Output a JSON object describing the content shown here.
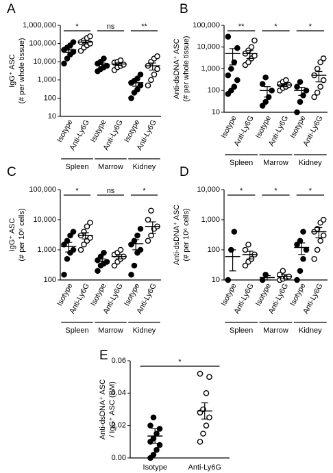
{
  "chart_data": [
    {
      "type": "dot",
      "panel": "A",
      "ylabel": [
        "IgG⁺ ASC",
        "(# per whole tissue)"
      ],
      "log": true,
      "color": "#000000",
      "ylim": [
        10,
        1000000
      ],
      "yticks": [
        10,
        100,
        {
          "value": 1000,
          "label": "1,000"
        },
        {
          "value": 10000,
          "label": "10,000"
        },
        {
          "value": 100000,
          "label": "100,000"
        },
        {
          "value": 1000000,
          "label": "1,000,000"
        }
      ],
      "categories": [
        "Isotype",
        "Anti-Ly6G",
        "Isotype",
        "Anti-Ly6G",
        "Isotype",
        "Anti-Ly6G"
      ],
      "open": [
        false,
        true,
        false,
        true,
        false,
        true
      ],
      "groups": [
        "Spleen",
        "Marrow",
        "Kidney"
      ],
      "significance": [
        "*",
        "ns",
        "**"
      ],
      "points": [
        [
          8000,
          15000,
          25000,
          35000,
          45000,
          60000,
          80000,
          120000
        ],
        [
          40000,
          60000,
          80000,
          100000,
          120000,
          150000,
          200000,
          250000
        ],
        [
          3000,
          4000,
          5000,
          6000,
          8000,
          10000,
          15000
        ],
        [
          3500,
          5000,
          6000,
          7000,
          9000,
          10000,
          12000
        ],
        [
          100,
          200,
          300,
          500,
          700,
          900,
          1200,
          2000
        ],
        [
          500,
          1000,
          2000,
          4000,
          6000,
          10000,
          15000,
          20000
        ]
      ],
      "means": [
        45000,
        120000,
        7000,
        7500,
        700,
        6000
      ],
      "errors": [
        12000,
        25000,
        1500,
        1200,
        250,
        2500
      ]
    },
    {
      "type": "dot",
      "panel": "B",
      "ylabel": [
        "Anti-dsDNA⁺ ASC",
        "(# per whole tissue)"
      ],
      "log": true,
      "color": "#000000",
      "ylim": [
        10,
        100000
      ],
      "yticks": [
        10,
        100,
        {
          "value": 1000,
          "label": "1,000"
        },
        {
          "value": 10000,
          "label": "10,000"
        },
        {
          "value": 100000,
          "label": "100,000"
        }
      ],
      "categories": [
        "Isotype",
        "Anti-Ly6G",
        "Isotype",
        "Anti-Ly6G",
        "Isotype",
        "Anti-Ly6G"
      ],
      "open": [
        false,
        true,
        false,
        true,
        false,
        true
      ],
      "groups": [
        "Spleen",
        "Marrow",
        "Kidney"
      ],
      "significance": [
        "**",
        "*",
        "*"
      ],
      "points": [
        [
          70,
          100,
          150,
          300,
          500,
          1000,
          2000,
          9000,
          30000
        ],
        [
          1500,
          2000,
          3000,
          4000,
          5000,
          7000,
          10000,
          20000
        ],
        [
          20,
          30,
          50,
          100,
          200,
          400
        ],
        [
          100,
          130,
          150,
          180,
          200,
          250,
          300
        ],
        [
          10,
          30,
          60,
          100,
          150,
          250
        ],
        [
          50,
          80,
          150,
          300,
          500,
          1000,
          2000,
          3000
        ]
      ],
      "means": [
        5000,
        5000,
        100,
        180,
        100,
        500
      ],
      "errors": [
        3500,
        2000,
        50,
        30,
        40,
        250
      ]
    },
    {
      "type": "dot",
      "panel": "C",
      "ylabel": [
        "IgG⁺ ASC",
        "(# per 10⁶ cells)"
      ],
      "log": true,
      "color": "#000000",
      "ylim": [
        100,
        100000
      ],
      "yticks": [
        100,
        {
          "value": 1000,
          "label": "1,000"
        },
        {
          "value": 10000,
          "label": "10,000"
        },
        {
          "value": 100000,
          "label": "100,000"
        }
      ],
      "categories": [
        "Isotype",
        "Anti-Ly6G",
        "Isotype",
        "Anti-Ly6G",
        "Isotype",
        "Anti-Ly6G"
      ],
      "open": [
        false,
        true,
        false,
        true,
        false,
        true
      ],
      "groups": [
        "Spleen",
        "Marrow",
        "Kidney"
      ],
      "significance": [
        "*",
        "ns",
        "*"
      ],
      "points": [
        [
          150,
          500,
          800,
          1000,
          1500,
          2000,
          3000,
          4000
        ],
        [
          1000,
          1500,
          2000,
          2500,
          3000,
          4000,
          6000,
          8000
        ],
        [
          200,
          300,
          350,
          400,
          450,
          600,
          800
        ],
        [
          300,
          400,
          500,
          600,
          700,
          800,
          1000
        ],
        [
          150,
          300,
          800,
          1000,
          1500,
          2000,
          3000,
          5000
        ],
        [
          2000,
          3000,
          5000,
          6000,
          10000,
          20000
        ]
      ],
      "means": [
        1300,
        3000,
        420,
        600,
        1600,
        6000
      ],
      "errors": [
        450,
        700,
        80,
        100,
        600,
        2500
      ]
    },
    {
      "type": "dot",
      "panel": "D",
      "ylabel": [
        "Anti-dsDNA⁺ ASC",
        "(# per 10⁶ cells)"
      ],
      "log": true,
      "color": "#000000",
      "ylim": [
        10,
        10000
      ],
      "yticks": [
        10,
        100,
        {
          "value": 1000,
          "label": "1,000"
        },
        {
          "value": 10000,
          "label": "10,000"
        }
      ],
      "categories": [
        "Isotype",
        "Anti-Ly6G",
        "Isotype",
        "Anti-Ly6G",
        "Isotype",
        "Anti-Ly6G"
      ],
      "open": [
        false,
        true,
        false,
        true,
        false,
        true
      ],
      "groups": [
        "Spleen",
        "Marrow",
        "Kidney"
      ],
      "significance": [
        "*",
        "*",
        "*"
      ],
      "points": [
        [
          10,
          100,
          400
        ],
        [
          30,
          40,
          50,
          70,
          100,
          150
        ],
        [
          10,
          15
        ],
        [
          10,
          11,
          12,
          13,
          15,
          20
        ],
        [
          10,
          20,
          50,
          100,
          150,
          200,
          400
        ],
        [
          50,
          100,
          200,
          300,
          400,
          500,
          800,
          1000
        ]
      ],
      "means": [
        60,
        70,
        12,
        13,
        120,
        400
      ],
      "errors": [
        40,
        20,
        2,
        2,
        50,
        150
      ]
    },
    {
      "type": "dot",
      "panel": "E",
      "ylabel": [
        "Anti-dsDNA⁺ ASC",
        "/ IgG⁺ ASC (BM)"
      ],
      "log": false,
      "color": "#000000",
      "ylim": [
        0,
        0.06
      ],
      "yticks": [
        {
          "value": 0,
          "label": "0.00"
        },
        0.02,
        0.04,
        0.06
      ],
      "categories": [
        "Isotype",
        "Anti-Ly6G"
      ],
      "open": [
        false,
        true
      ],
      "significance": [
        "*"
      ],
      "points": [
        [
          0,
          0.002,
          0.005,
          0.008,
          0.01,
          0.012,
          0.015,
          0.018,
          0.02,
          0.025
        ],
        [
          0.01,
          0.015,
          0.02,
          0.025,
          0.028,
          0.03,
          0.04,
          0.05,
          0.052
        ]
      ],
      "means": [
        0.0135,
        0.029
      ],
      "errors": [
        0.0045,
        0.005
      ]
    }
  ]
}
